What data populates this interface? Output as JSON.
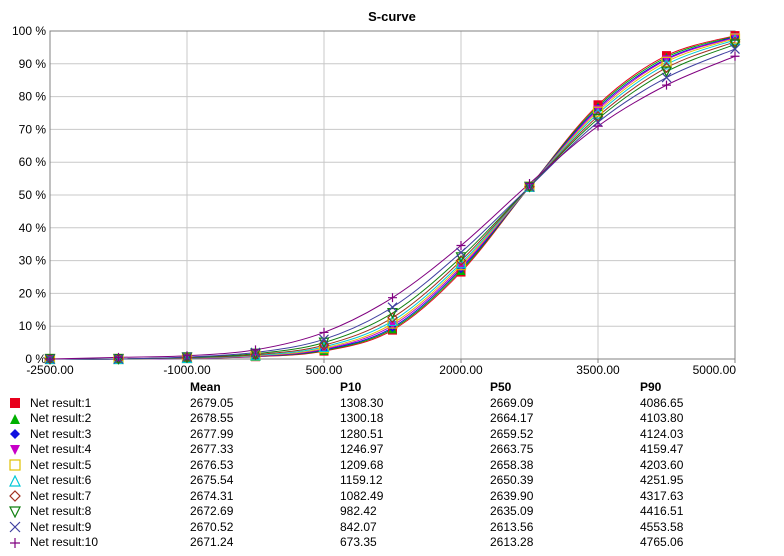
{
  "chart_data": {
    "type": "line",
    "title": "S-curve",
    "xlim": [
      -2500,
      5000
    ],
    "ylim": [
      0,
      100
    ],
    "x_ticks": [
      "-2500.00",
      "-1000.00",
      "500.00",
      "2000.00",
      "3500.00",
      "5000.00"
    ],
    "y_ticks": [
      "0 %",
      "10 %",
      "20 %",
      "30 %",
      "40 %",
      "50 %",
      "60 %",
      "70 %",
      "80 %",
      "90 %",
      "100 %"
    ],
    "grid": true,
    "legend_headers": {
      "mean": "Mean",
      "p10": "P10",
      "p50": "P50",
      "p90": "P90"
    },
    "series": [
      {
        "name": "Net result:1",
        "mean": "2679.05",
        "p10": "1308.30",
        "p50": "2669.09",
        "p90": "4086.65",
        "color": "#e8001c",
        "marker": "square-filled",
        "x": [
          -2500,
          -1750,
          -1000,
          -250,
          500,
          1250,
          2000,
          2750,
          3500,
          4250,
          5000
        ],
        "y": [
          0,
          0,
          0.2,
          0.7,
          2.4,
          8.8,
          26.5,
          52.5,
          77.5,
          92.5,
          98.6
        ]
      },
      {
        "name": "Net result:2",
        "mean": "2678.55",
        "p10": "1300.18",
        "p50": "2664.17",
        "p90": "4103.80",
        "color": "#00b000",
        "marker": "triangle-up-filled",
        "x": [
          -2500,
          -1750,
          -1000,
          -250,
          500,
          1250,
          2000,
          2750,
          3500,
          4250,
          5000
        ],
        "y": [
          0,
          0,
          0.2,
          0.8,
          2.6,
          9.2,
          27.0,
          52.5,
          77.0,
          92.0,
          98.4
        ]
      },
      {
        "name": "Net result:3",
        "mean": "2677.99",
        "p10": "1280.51",
        "p50": "2659.52",
        "p90": "4124.03",
        "color": "#1010e0",
        "marker": "diamond-filled",
        "x": [
          -2500,
          -1750,
          -1000,
          -250,
          500,
          1250,
          2000,
          2750,
          3500,
          4250,
          5000
        ],
        "y": [
          0,
          0,
          0.2,
          0.8,
          2.8,
          9.6,
          27.5,
          52.5,
          76.5,
          91.5,
          98.2
        ]
      },
      {
        "name": "Net result:4",
        "mean": "2677.33",
        "p10": "1246.97",
        "p50": "2663.75",
        "p90": "4159.47",
        "color": "#c800c8",
        "marker": "triangle-down-filled",
        "x": [
          -2500,
          -1750,
          -1000,
          -250,
          500,
          1250,
          2000,
          2750,
          3500,
          4250,
          5000
        ],
        "y": [
          0,
          0,
          0.2,
          0.9,
          3.0,
          10.2,
          28.0,
          52.5,
          76.0,
          91.2,
          98.0
        ]
      },
      {
        "name": "Net result:5",
        "mean": "2676.53",
        "p10": "1209.68",
        "p50": "2658.38",
        "p90": "4203.60",
        "color": "#e0c000",
        "marker": "square-open",
        "x": [
          -2500,
          -1750,
          -1000,
          -250,
          500,
          1250,
          2000,
          2750,
          3500,
          4250,
          5000
        ],
        "y": [
          0,
          0,
          0.3,
          1.0,
          3.3,
          10.8,
          28.6,
          52.5,
          75.4,
          90.6,
          97.7
        ]
      },
      {
        "name": "Net result:6",
        "mean": "2675.54",
        "p10": "1159.12",
        "p50": "2650.39",
        "p90": "4251.95",
        "color": "#00c8d8",
        "marker": "triangle-up-open",
        "x": [
          -2500,
          -1750,
          -1000,
          -250,
          500,
          1250,
          2000,
          2750,
          3500,
          4250,
          5000
        ],
        "y": [
          0,
          0,
          0.3,
          1.1,
          3.7,
          11.6,
          29.2,
          52.5,
          74.8,
          89.8,
          97.3
        ]
      },
      {
        "name": "Net result:7",
        "mean": "2674.31",
        "p10": "1082.49",
        "p50": "2639.90",
        "p90": "4317.63",
        "color": "#a03020",
        "marker": "diamond-open",
        "x": [
          -2500,
          -1750,
          -1000,
          -250,
          500,
          1250,
          2000,
          2750,
          3500,
          4250,
          5000
        ],
        "y": [
          0,
          0,
          0.4,
          1.3,
          4.2,
          12.6,
          30.0,
          52.5,
          74.0,
          88.8,
          96.7
        ]
      },
      {
        "name": "Net result:8",
        "mean": "2672.69",
        "p10": "982.42",
        "p50": "2635.09",
        "p90": "4416.51",
        "color": "#108010",
        "marker": "triangle-down-open",
        "x": [
          -2500,
          -1750,
          -1000,
          -250,
          500,
          1250,
          2000,
          2750,
          3500,
          4250,
          5000
        ],
        "y": [
          0,
          0,
          0.5,
          1.6,
          5.0,
          14.0,
          31.0,
          52.5,
          73.2,
          87.6,
          95.9
        ]
      },
      {
        "name": "Net result:9",
        "mean": "2670.52",
        "p10": "842.07",
        "p50": "2613.56",
        "p90": "4553.58",
        "color": "#4040a0",
        "marker": "x",
        "x": [
          -2500,
          -1750,
          -1000,
          -250,
          500,
          1250,
          2000,
          2750,
          3500,
          4250,
          5000
        ],
        "y": [
          0,
          0,
          0.6,
          2.0,
          6.0,
          15.8,
          32.5,
          52.5,
          72.2,
          85.8,
          94.5
        ]
      },
      {
        "name": "Net result:10",
        "mean": "2671.24",
        "p10": "673.35",
        "p50": "2613.28",
        "p90": "4765.06",
        "color": "#800080",
        "marker": "plus",
        "x": [
          -2500,
          -1750,
          -1000,
          -250,
          500,
          1250,
          2000,
          2750,
          3500,
          4250,
          5000
        ],
        "y": [
          0,
          0.5,
          1.0,
          2.8,
          8.1,
          18.7,
          34.6,
          53.5,
          71.0,
          83.5,
          92.3
        ]
      }
    ]
  }
}
